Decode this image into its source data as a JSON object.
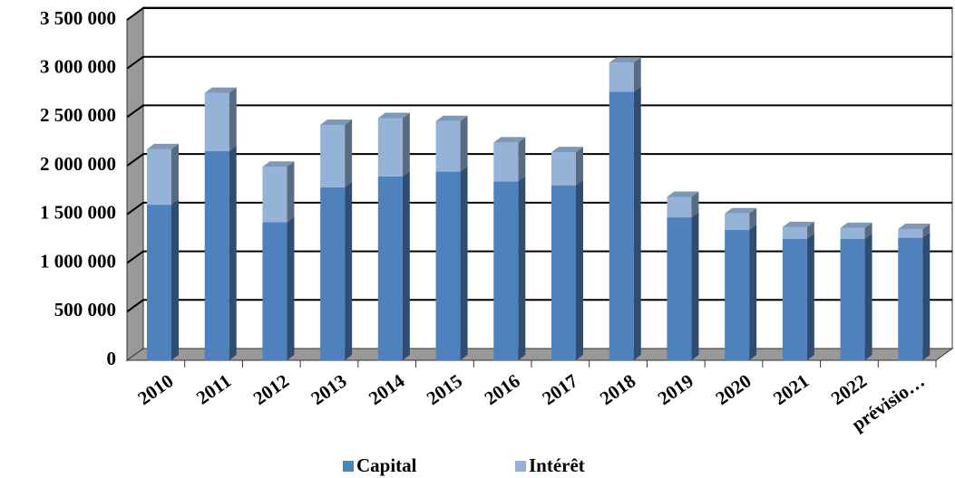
{
  "chart_data": {
    "type": "bar3d_stacked",
    "categories": [
      "2010",
      "2011",
      "2012",
      "2013",
      "2014",
      "2015",
      "2016",
      "2017",
      "2018",
      "2019",
      "2020",
      "2021",
      "2022",
      "prévisio…"
    ],
    "series": [
      {
        "name": "Capital",
        "color": "#4f81bd",
        "values": [
          1600000,
          2150000,
          1420000,
          1780000,
          1890000,
          1940000,
          1840000,
          1800000,
          2760000,
          1470000,
          1340000,
          1250000,
          1250000,
          1260000
        ]
      },
      {
        "name": "Intérêt",
        "color": "#95b3d7",
        "values": [
          570000,
          600000,
          570000,
          640000,
          600000,
          520000,
          400000,
          340000,
          300000,
          210000,
          170000,
          120000,
          110000,
          90000
        ]
      }
    ],
    "ylim": [
      0,
      3500000
    ],
    "yticks": [
      0,
      {
        "value": 500000,
        "label": "500 000"
      },
      {
        "value": 1000000,
        "label": "1 000 000"
      },
      {
        "value": 1500000,
        "label": "1 500 000"
      },
      {
        "value": 2000000,
        "label": "2 000 000"
      },
      {
        "value": 2500000,
        "label": "2 500 000"
      },
      {
        "value": 3000000,
        "label": "3 000 000"
      },
      {
        "value": 3500000,
        "label": "3 500 000"
      }
    ],
    "grid": true,
    "legend": "bottom"
  }
}
